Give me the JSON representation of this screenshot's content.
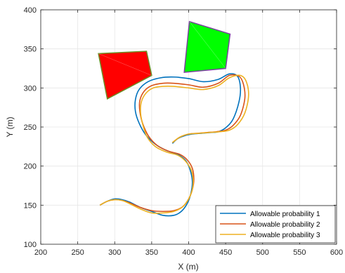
{
  "chart_data": {
    "type": "line",
    "title": "",
    "xlabel": "X (m)",
    "ylabel": "Y (m)",
    "xlim": [
      200,
      600
    ],
    "ylim": [
      100,
      400
    ],
    "xticks": [
      200,
      250,
      300,
      350,
      400,
      450,
      500,
      550,
      600
    ],
    "yticks": [
      100,
      150,
      200,
      250,
      300,
      350,
      400
    ],
    "grid": true,
    "legend_position": "bottom-right",
    "obstacles": [
      {
        "fill": "#ff0000",
        "edge": "#6b8e23",
        "vertices": [
          [
            278,
            344
          ],
          [
            343,
            347
          ],
          [
            350,
            316
          ],
          [
            290,
            286
          ]
        ]
      },
      {
        "fill": "#00ff00",
        "edge": "#7b3fa0",
        "vertices": [
          [
            401,
            385
          ],
          [
            456,
            369
          ],
          [
            450,
            325
          ],
          [
            394,
            320
          ]
        ]
      }
    ],
    "series": [
      {
        "name": "Allowable probability 1",
        "color": "#0072bd",
        "x": [
          280,
          290,
          300,
          310,
          320,
          335,
          350,
          365,
          380,
          390,
          398,
          403,
          405,
          402,
          396,
          385,
          370,
          355,
          342,
          333,
          328,
          328,
          333,
          345,
          362,
          380,
          400,
          420,
          440,
          455,
          466,
          470,
          468,
          460,
          450,
          440,
          430,
          418,
          405,
          395,
          385,
          378
        ],
        "y": [
          150,
          155,
          158,
          157,
          154,
          147,
          142,
          137,
          137,
          142,
          152,
          165,
          180,
          195,
          207,
          215,
          220,
          228,
          240,
          255,
          270,
          285,
          298,
          308,
          313,
          314,
          312,
          308,
          311,
          318,
          315,
          300,
          282,
          260,
          249,
          244,
          243,
          242,
          241,
          239,
          235,
          229
        ]
      },
      {
        "name": "Allowable probability 2",
        "color": "#d95319",
        "x": [
          280,
          290,
          300,
          310,
          320,
          335,
          350,
          365,
          380,
          392,
          400,
          405,
          407,
          405,
          398,
          388,
          373,
          358,
          346,
          338,
          334,
          334,
          340,
          350,
          365,
          380,
          400,
          420,
          440,
          455,
          468,
          474,
          476,
          470,
          460,
          450,
          438,
          425,
          412,
          400,
          388,
          378
        ],
        "y": [
          150,
          155,
          157,
          156,
          153,
          147,
          143,
          142,
          143,
          148,
          158,
          170,
          183,
          197,
          208,
          215,
          219,
          226,
          238,
          254,
          270,
          284,
          296,
          303,
          306,
          306,
          304,
          301,
          306,
          316,
          315,
          305,
          287,
          265,
          252,
          246,
          244,
          243,
          242,
          241,
          237,
          230
        ]
      },
      {
        "name": "Allowable probability 3",
        "color": "#edb120",
        "x": [
          280,
          290,
          300,
          310,
          320,
          335,
          350,
          365,
          380,
          392,
          400,
          405,
          406,
          403,
          395,
          385,
          370,
          355,
          344,
          338,
          335,
          336,
          342,
          352,
          365,
          380,
          400,
          420,
          440,
          455,
          470,
          478,
          481,
          476,
          466,
          455,
          442,
          428,
          414,
          400,
          388,
          378
        ],
        "y": [
          150,
          155,
          157,
          156,
          152,
          145,
          140,
          140,
          142,
          148,
          158,
          170,
          183,
          196,
          207,
          214,
          218,
          225,
          237,
          253,
          268,
          282,
          293,
          300,
          302,
          302,
          300,
          298,
          303,
          313,
          316,
          308,
          290,
          268,
          253,
          246,
          244,
          243,
          242,
          241,
          237,
          230
        ]
      }
    ]
  }
}
